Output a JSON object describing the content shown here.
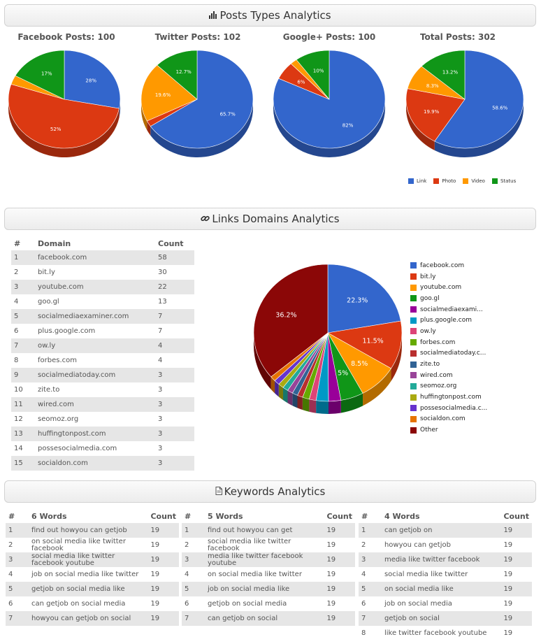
{
  "sections": {
    "posts_title": "Posts Types Analytics",
    "links_title": "Links Domains Analytics",
    "keywords_title": "Keywords Analytics",
    "posts_icon": "bar-chart-icon",
    "links_icon": "link-icon",
    "keywords_icon": "document-icon"
  },
  "colors": {
    "link": "#3366cc",
    "photo": "#dc3912",
    "video": "#ff9900",
    "status": "#109618"
  },
  "chart_data": [
    {
      "type": "pie",
      "title": "Facebook Posts: 100",
      "labels": [
        "Link",
        "Photo",
        "Video",
        "Status"
      ],
      "values": [
        28,
        52,
        3,
        17
      ],
      "data_labels": [
        "28%",
        "52%",
        "",
        "17%"
      ]
    },
    {
      "type": "pie",
      "title": "Twitter Posts: 102",
      "labels": [
        "Link",
        "Photo",
        "Video",
        "Status"
      ],
      "values": [
        65.7,
        2,
        19.6,
        12.7
      ],
      "data_labels": [
        "65.7%",
        "",
        "19.6%",
        "12.7%"
      ]
    },
    {
      "type": "pie",
      "title": "Google+ Posts: 100",
      "labels": [
        "Link",
        "Photo",
        "Video",
        "Status"
      ],
      "values": [
        82,
        6,
        2,
        10
      ],
      "data_labels": [
        "82%",
        "6%",
        "",
        "10%"
      ]
    },
    {
      "type": "pie",
      "title": "Total Posts: 302",
      "labels": [
        "Link",
        "Photo",
        "Video",
        "Status"
      ],
      "values": [
        58.6,
        19.9,
        8.3,
        13.2
      ],
      "data_labels": [
        "58.6%",
        "19.9%",
        "8.3%",
        "13.2%"
      ]
    },
    {
      "type": "pie",
      "title": "",
      "labels": [
        "facebook.com",
        "bit.ly",
        "youtube.com",
        "goo.gl",
        "socialmediaexami...",
        "plus.google.com",
        "ow.ly",
        "forbes.com",
        "socialmediatoday.c...",
        "zite.to",
        "wired.com",
        "seomoz.org",
        "huffingtonpost.com",
        "possesocialmedia.c...",
        "socialdon.com",
        "Other"
      ],
      "values": [
        22.3,
        11.5,
        8.5,
        5,
        2.7,
        2.7,
        1.5,
        1.5,
        1.2,
        1.2,
        1.2,
        1.2,
        1.2,
        1.2,
        1.2,
        36.2
      ],
      "data_labels": [
        "22.3%",
        "11.5%",
        "8.5%",
        "5%",
        "",
        "",
        "",
        "",
        "",
        "",
        "",
        "",
        "",
        "",
        "",
        "36.2%"
      ],
      "colors": [
        "#3366cc",
        "#dc3912",
        "#ff9900",
        "#109618",
        "#990099",
        "#0099c6",
        "#dd4477",
        "#66aa00",
        "#b82e2e",
        "#316395",
        "#994499",
        "#22aa99",
        "#aaaa11",
        "#6633cc",
        "#e67300",
        "#8b0707"
      ],
      "legend_position": "right"
    }
  ],
  "legend_small": [
    "Link",
    "Photo",
    "Video",
    "Status"
  ],
  "domains": {
    "headers": [
      "#",
      "Domain",
      "Count"
    ],
    "rows": [
      [
        "1",
        "facebook.com",
        "58"
      ],
      [
        "2",
        "bit.ly",
        "30"
      ],
      [
        "3",
        "youtube.com",
        "22"
      ],
      [
        "4",
        "goo.gl",
        "13"
      ],
      [
        "5",
        "socialmediaexaminer.com",
        "7"
      ],
      [
        "6",
        "plus.google.com",
        "7"
      ],
      [
        "7",
        "ow.ly",
        "4"
      ],
      [
        "8",
        "forbes.com",
        "4"
      ],
      [
        "9",
        "socialmediatoday.com",
        "3"
      ],
      [
        "10",
        "zite.to",
        "3"
      ],
      [
        "11",
        "wired.com",
        "3"
      ],
      [
        "12",
        "seomoz.org",
        "3"
      ],
      [
        "13",
        "huffingtonpost.com",
        "3"
      ],
      [
        "14",
        "possesocialmedia.com",
        "3"
      ],
      [
        "15",
        "socialdon.com",
        "3"
      ]
    ]
  },
  "keywords": [
    {
      "headers": [
        "#",
        "6 Words",
        "Count"
      ],
      "rows": [
        [
          "1",
          "find out howyou can getjob",
          "19"
        ],
        [
          "2",
          "on social media like twitter facebook",
          "19"
        ],
        [
          "3",
          "social media like twitter facebook youtube",
          "19"
        ],
        [
          "4",
          "job on social media like twitter",
          "19"
        ],
        [
          "5",
          "getjob on social media like",
          "19"
        ],
        [
          "6",
          "can getjob on social media",
          "19"
        ],
        [
          "7",
          "howyou can getjob on social",
          "19"
        ]
      ]
    },
    {
      "headers": [
        "#",
        "5 Words",
        "Count"
      ],
      "rows": [
        [
          "1",
          "find out howyou can get",
          "19"
        ],
        [
          "2",
          "social media like twitter facebook",
          "19"
        ],
        [
          "3",
          "media like twitter facebook youtube",
          "19"
        ],
        [
          "4",
          "on social media like twitter",
          "19"
        ],
        [
          "5",
          "job on social media like",
          "19"
        ],
        [
          "6",
          "getjob on social media",
          "19"
        ],
        [
          "7",
          "can getjob on social",
          "19"
        ]
      ]
    },
    {
      "headers": [
        "#",
        "4 Words",
        "Count"
      ],
      "rows": [
        [
          "1",
          "can getjob on",
          "19"
        ],
        [
          "2",
          "howyou can getjob",
          "19"
        ],
        [
          "3",
          "media like twitter facebook",
          "19"
        ],
        [
          "4",
          "social media like twitter",
          "19"
        ],
        [
          "5",
          "on social media like",
          "19"
        ],
        [
          "6",
          "job on social media",
          "19"
        ],
        [
          "7",
          "getjob on social",
          "19"
        ],
        [
          "8",
          "like twitter facebook youtube",
          "19"
        ]
      ]
    }
  ]
}
